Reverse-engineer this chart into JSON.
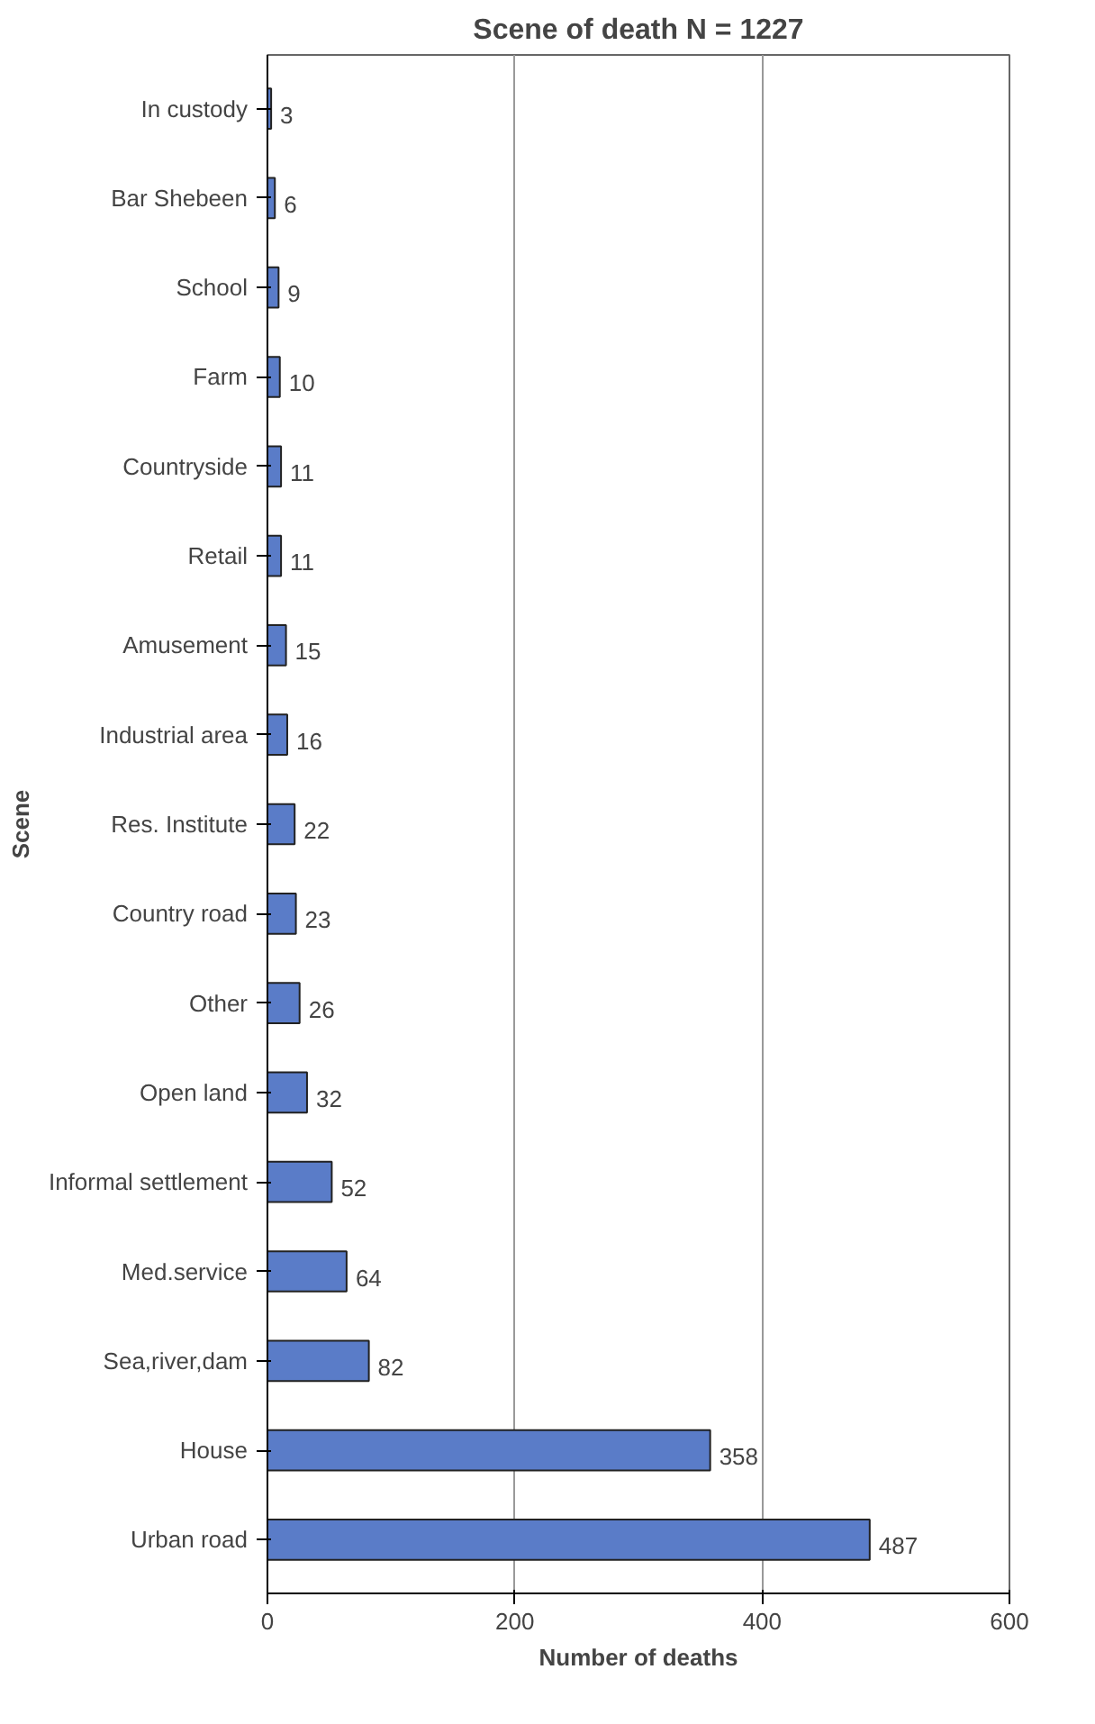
{
  "chart_data": {
    "type": "bar",
    "orientation": "horizontal",
    "title": "Scene of death N = 1227",
    "xlabel": "Number of deaths",
    "ylabel": "Scene",
    "categories": [
      "In custody",
      "Bar Shebeen",
      "School",
      "Farm",
      "Countryside",
      "Retail",
      "Amusement",
      "Industrial area",
      "Res. Institute",
      "Country road",
      "Other",
      "Open land",
      "Informal settlement",
      "Med.service",
      "Sea,river,dam",
      "House",
      "Urban road"
    ],
    "values": [
      3,
      6,
      9,
      10,
      11,
      11,
      15,
      16,
      22,
      23,
      26,
      32,
      52,
      64,
      82,
      358,
      487
    ],
    "color": "#5a7cc8",
    "xlim": [
      0,
      600
    ],
    "xticks": [
      0,
      200,
      400,
      600
    ],
    "grid": "x",
    "data_labels": true
  }
}
